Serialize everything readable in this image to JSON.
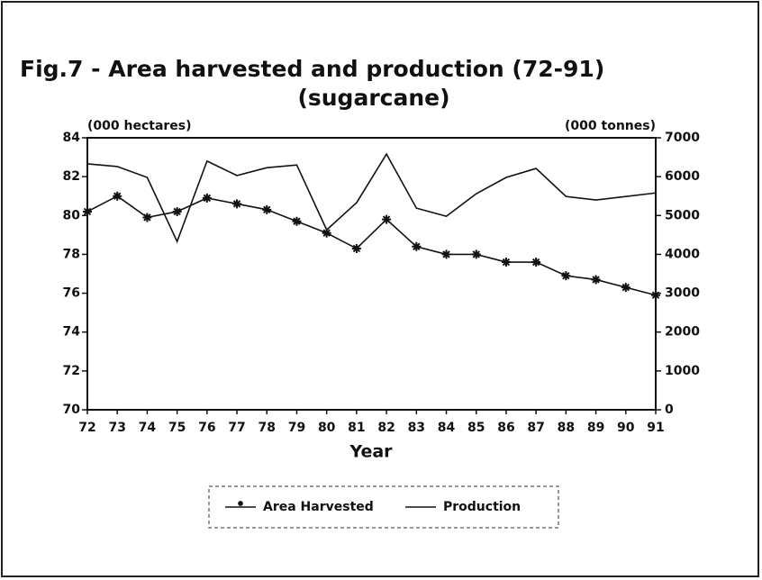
{
  "chart_data": {
    "type": "line",
    "title": "Fig.7 - Area harvested and production (72-91)",
    "subtitle": "(sugarcane)",
    "ylabel": "(000 hectares)",
    "y2label": "(000 tonnes)",
    "xlabel": "Year",
    "categories": [
      "72",
      "73",
      "74",
      "75",
      "76",
      "77",
      "78",
      "79",
      "80",
      "81",
      "82",
      "83",
      "84",
      "85",
      "86",
      "87",
      "88",
      "89",
      "90",
      "91"
    ],
    "ylim": [
      70,
      84
    ],
    "yticks": [
      70,
      72,
      74,
      76,
      78,
      80,
      82,
      84
    ],
    "y2lim": [
      0,
      7000
    ],
    "y2ticks": [
      0,
      1000,
      2000,
      3000,
      4000,
      5000,
      6000,
      7000
    ],
    "series": [
      {
        "name": "Area Harvested",
        "color": "#111111",
        "marker": "asterisk",
        "values": [
          80.2,
          81.0,
          79.9,
          80.2,
          80.9,
          80.6,
          80.3,
          79.7,
          79.1,
          78.3,
          79.8,
          78.4,
          78.0,
          78.0,
          77.6,
          77.6,
          76.9,
          76.7,
          76.3,
          75.9
        ]
      },
      {
        "name": "Production",
        "color": "#111111",
        "axis": "y2",
        "values": [
          6330,
          6260,
          5980,
          4330,
          6400,
          6030,
          6230,
          6300,
          4630,
          5330,
          6580,
          5190,
          4980,
          5560,
          5980,
          6210,
          5490,
          5400,
          5490,
          5580
        ]
      }
    ]
  }
}
